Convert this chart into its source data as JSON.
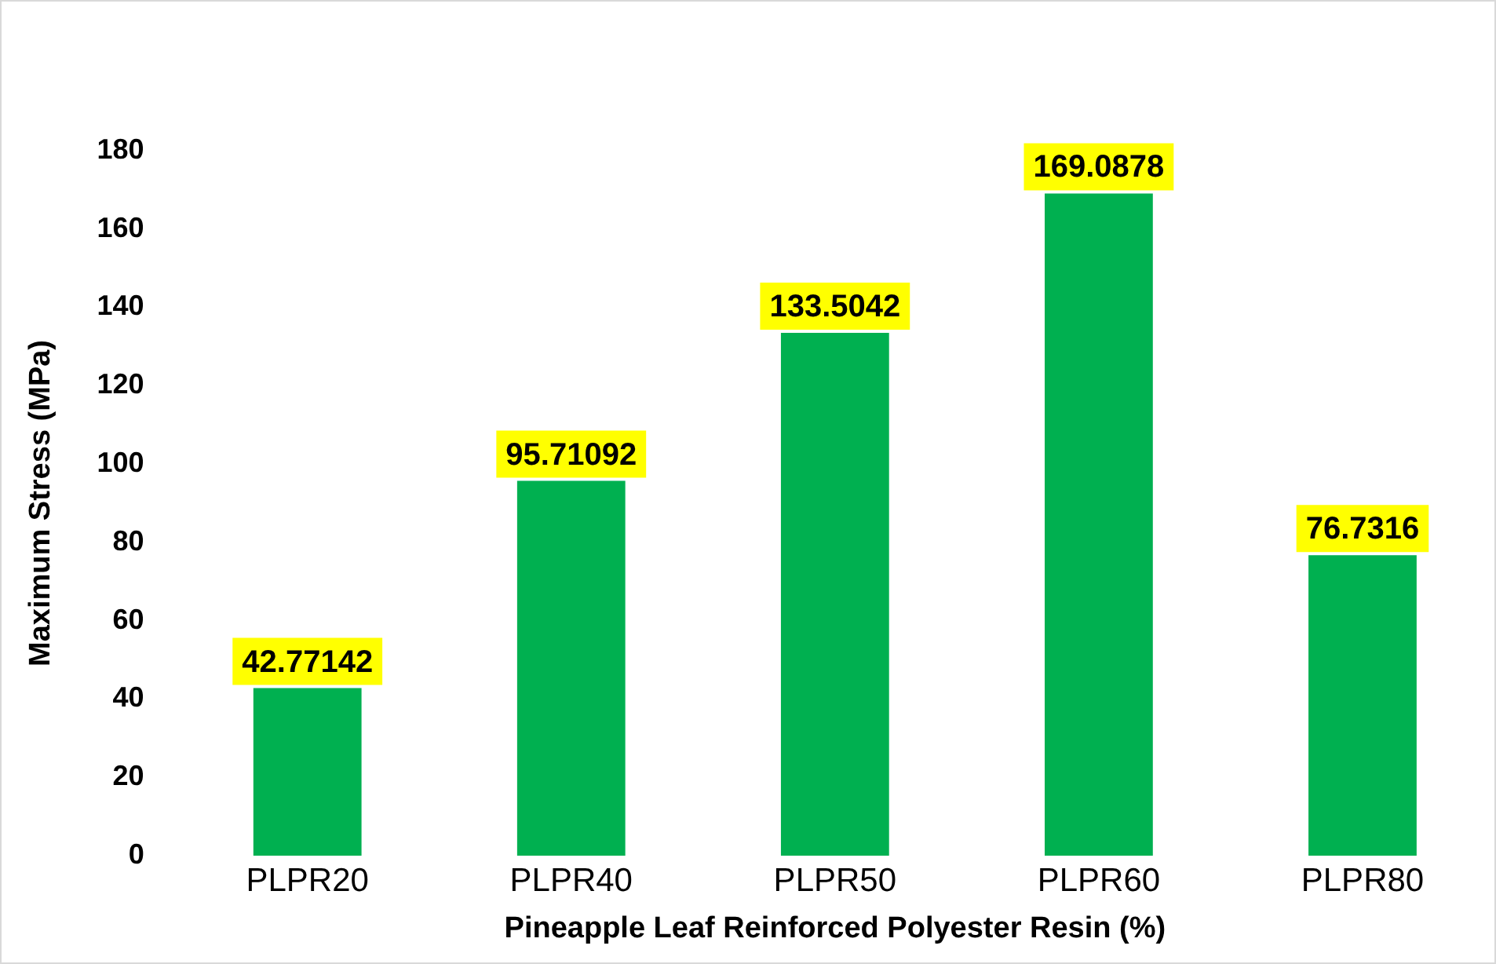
{
  "chart_data": {
    "type": "bar",
    "xlabel": "Pineapple Leaf Reinforced Polyester Resin (%)",
    "ylabel": "Maximum Stress (MPa)",
    "categories": [
      "PLPR20",
      "PLPR40",
      "PLPR50",
      "PLPR60",
      "PLPR80"
    ],
    "values": [
      42.77142,
      95.71092,
      133.5042,
      169.0878,
      76.7316
    ],
    "color": "#00b050",
    "ylim": [
      0,
      180
    ],
    "yticks": [
      0,
      20,
      40,
      60,
      80,
      100,
      120,
      140,
      160,
      180
    ],
    "grid": false,
    "legend": false,
    "data_labels": true
  }
}
